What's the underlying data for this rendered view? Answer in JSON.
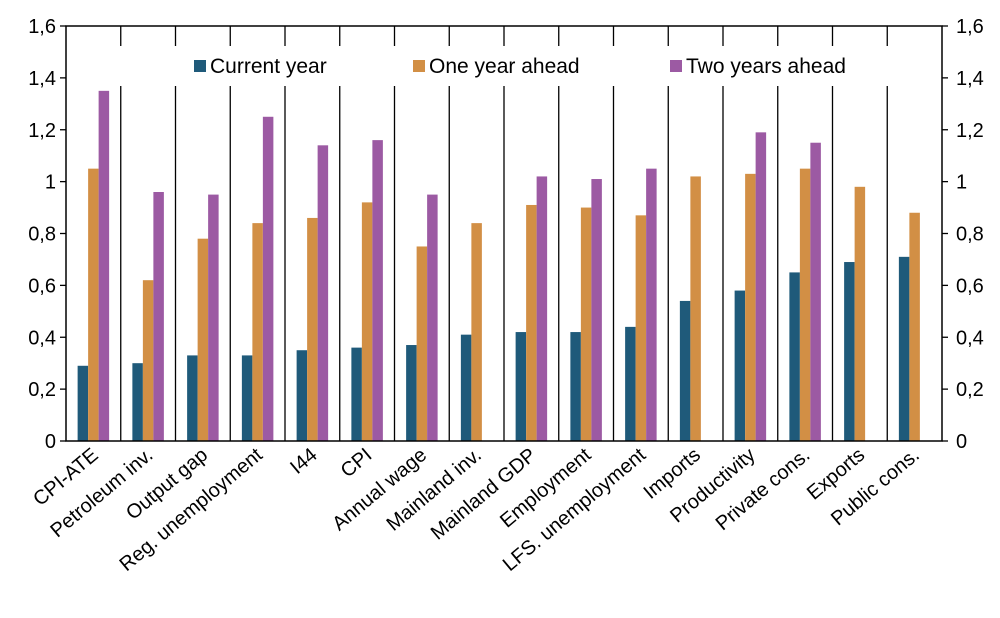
{
  "chart_data": {
    "type": "bar",
    "categories": [
      "CPI-ATE",
      "Petroleum inv.",
      "Output gap",
      "Reg. unemployment",
      "I44",
      "CPI",
      "Annual wage",
      "Mainland inv.",
      "Mainland GDP",
      "Employment",
      "LFS. unemployment",
      "Imports",
      "Productivity",
      "Private cons.",
      "Exports",
      "Public cons."
    ],
    "series": [
      {
        "name": "Current year",
        "color": "#1f5a7a",
        "values": [
          0.29,
          0.3,
          0.33,
          0.33,
          0.35,
          0.36,
          0.37,
          0.41,
          0.42,
          0.42,
          0.44,
          0.54,
          0.58,
          0.65,
          0.69,
          0.71
        ]
      },
      {
        "name": "One year ahead",
        "color": "#d28f45",
        "values": [
          1.05,
          0.62,
          0.78,
          0.84,
          0.86,
          0.92,
          0.75,
          0.84,
          0.91,
          0.9,
          0.87,
          1.02,
          1.03,
          1.05,
          0.98,
          0.88
        ]
      },
      {
        "name": "Two years ahead",
        "color": "#9c5aa3",
        "values": [
          1.35,
          0.96,
          0.95,
          1.25,
          1.14,
          1.16,
          0.95,
          null,
          1.02,
          1.01,
          1.05,
          null,
          1.19,
          1.15,
          null,
          null
        ]
      }
    ],
    "y_ticks": [
      "0",
      "0,2",
      "0,4",
      "0,6",
      "0,8",
      "1",
      "1,2",
      "1,4",
      "1,6"
    ],
    "ylim": [
      0,
      1.6
    ],
    "y_tick_values": [
      0,
      0.2,
      0.4,
      0.6,
      0.8,
      1.0,
      1.2,
      1.4,
      1.6
    ],
    "grid": false,
    "legend_position": "top"
  }
}
